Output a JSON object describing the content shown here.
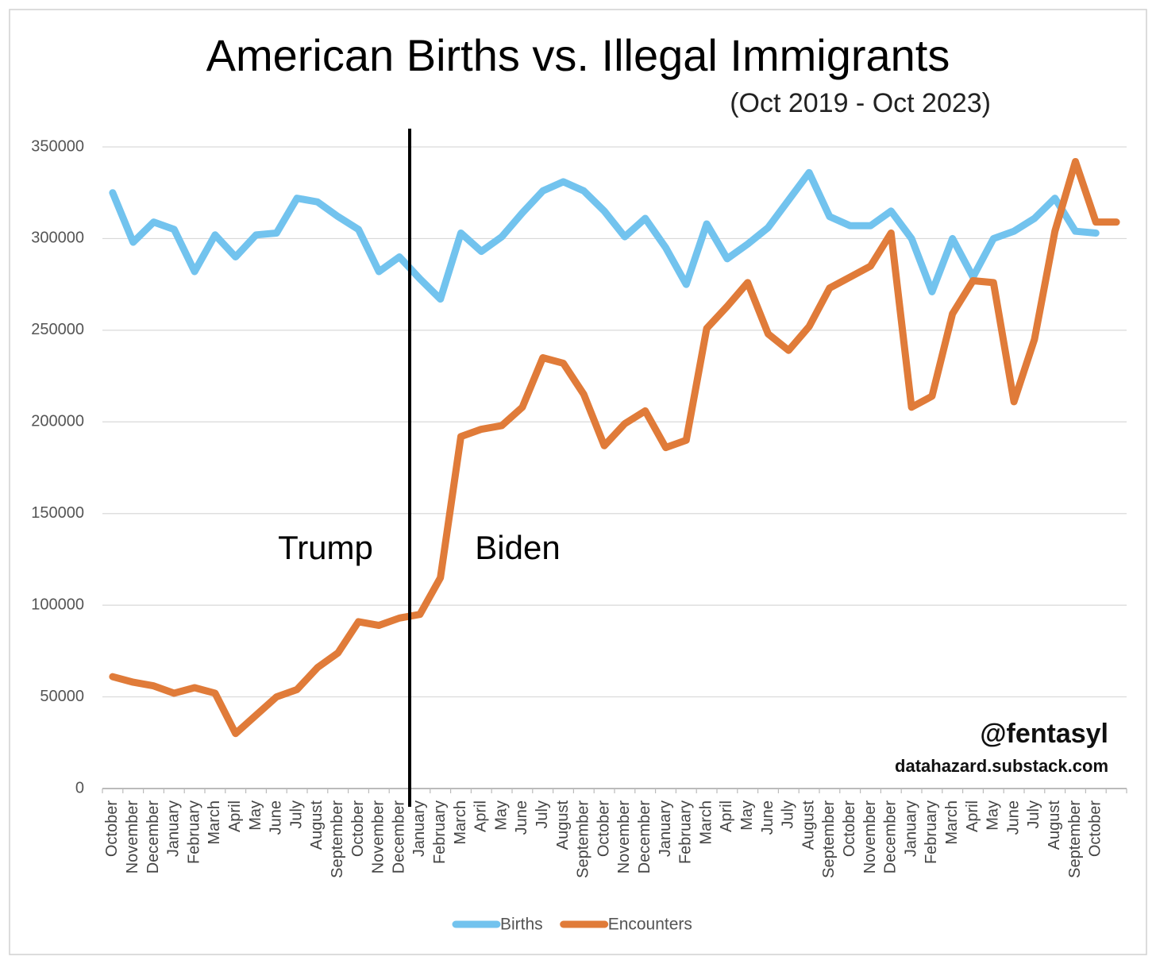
{
  "chart_data": {
    "type": "line",
    "title": "American Births vs. Illegal Immigrants",
    "subtitle": "(Oct 2019 - Oct 2023)",
    "annotations": [
      "Trump",
      "Biden",
      "@fentasyl",
      "datahazard.substack.com"
    ],
    "categories": [
      "October",
      "November",
      "December",
      "January",
      "February",
      "March",
      "April",
      "May",
      "June",
      "July",
      "August",
      "September",
      "October",
      "November",
      "December",
      "January",
      "February",
      "March",
      "April",
      "May",
      "June",
      "July",
      "August",
      "September",
      "October",
      "November",
      "December",
      "January",
      "February",
      "March",
      "April",
      "May",
      "June",
      "July",
      "August",
      "September",
      "October",
      "November",
      "December",
      "January",
      "February",
      "March",
      "April",
      "May",
      "June",
      "July",
      "August",
      "September",
      "October",
      null
    ],
    "series": [
      {
        "name": "Births",
        "color": "#72c3ee",
        "values": [
          325000,
          298000,
          309000,
          305000,
          282000,
          302000,
          290000,
          302000,
          303000,
          322000,
          320000,
          312000,
          305000,
          282000,
          290000,
          278000,
          267000,
          303000,
          293000,
          301000,
          314000,
          326000,
          331000,
          326000,
          315000,
          301000,
          311000,
          295000,
          275000,
          308000,
          289000,
          297000,
          306000,
          321000,
          336000,
          312000,
          307000,
          307000,
          315000,
          300000,
          271000,
          300000,
          279000,
          300000,
          304000,
          311000,
          322000,
          304000,
          303000,
          null
        ]
      },
      {
        "name": "Encounters",
        "color": "#e07b39",
        "values": [
          61000,
          58000,
          56000,
          52000,
          55000,
          52000,
          30000,
          40000,
          50000,
          54000,
          66000,
          74000,
          91000,
          89000,
          93000,
          95000,
          115000,
          192000,
          196000,
          198000,
          208000,
          235000,
          232000,
          215000,
          187000,
          199000,
          206000,
          186000,
          190000,
          251000,
          263000,
          276000,
          248000,
          239000,
          252000,
          273000,
          279000,
          285000,
          303000,
          208000,
          214000,
          259000,
          277000,
          276000,
          211000,
          245000,
          304000,
          342000,
          309000,
          309000
        ]
      }
    ],
    "ylim": [
      0,
      350000
    ],
    "yticks": [
      0,
      50000,
      100000,
      150000,
      200000,
      250000,
      300000,
      350000
    ],
    "grid": true,
    "legend": "bottom"
  }
}
